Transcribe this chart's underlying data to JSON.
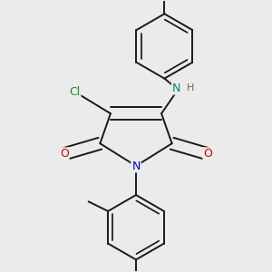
{
  "bg_color": "#ebebeb",
  "bond_color": "#1a1a1a",
  "bond_width": 1.4,
  "atom_colors": {
    "N_ring": "#0000cc",
    "N_amine": "#008080",
    "O": "#cc0000",
    "Cl": "#228B22",
    "H": "#666666",
    "C": "#1a1a1a"
  },
  "font_size": 9,
  "font_size_small": 8
}
